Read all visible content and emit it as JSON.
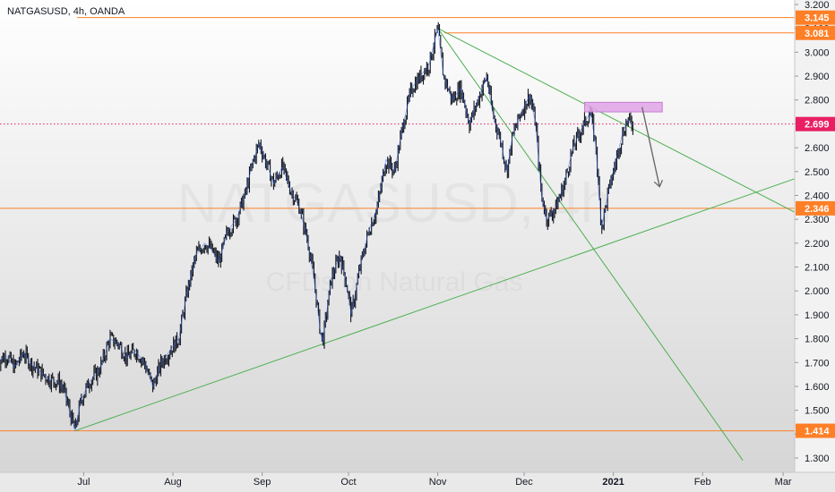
{
  "chart_data": {
    "type": "line",
    "title": "NATGASUSD, 4h, OANDA",
    "watermark": {
      "symbol": "NATGASUSD, 4h",
      "description": "CFDs on Natural Gas"
    },
    "x_axis": {
      "range": [
        "2020-06-01",
        "2021-03-05"
      ],
      "ticks": [
        {
          "label": "Jul",
          "date": "2020-07-01",
          "bold": false
        },
        {
          "label": "Aug",
          "date": "2020-08-01",
          "bold": false
        },
        {
          "label": "Sep",
          "date": "2020-09-01",
          "bold": false
        },
        {
          "label": "Oct",
          "date": "2020-10-01",
          "bold": false
        },
        {
          "label": "Nov",
          "date": "2020-11-01",
          "bold": false
        },
        {
          "label": "Dec",
          "date": "2020-12-01",
          "bold": false
        },
        {
          "label": "2021",
          "date": "2021-01-01",
          "bold": true
        },
        {
          "label": "Feb",
          "date": "2021-02-01",
          "bold": false
        },
        {
          "label": "Mar",
          "date": "2021-03-01",
          "bold": false
        }
      ]
    },
    "y_axis": {
      "range": [
        1.27,
        3.2
      ],
      "ticks": [
        "1.300",
        "1.400",
        "1.500",
        "1.600",
        "1.700",
        "1.800",
        "1.900",
        "2.000",
        "2.100",
        "2.200",
        "2.300",
        "2.400",
        "2.500",
        "2.600",
        "2.700",
        "2.800",
        "2.900",
        "3.000",
        "3.100",
        "3.200"
      ]
    },
    "series": [
      {
        "color": "#131722",
        "wick_color": "#2962ff",
        "points": [
          [
            "2020-06-01",
            1.7
          ],
          [
            "2020-06-04",
            1.73
          ],
          [
            "2020-06-07",
            1.68
          ],
          [
            "2020-06-10",
            1.74
          ],
          [
            "2020-06-13",
            1.69
          ],
          [
            "2020-06-16",
            1.66
          ],
          [
            "2020-06-19",
            1.63
          ],
          [
            "2020-06-22",
            1.62
          ],
          [
            "2020-06-24",
            1.59
          ],
          [
            "2020-06-26",
            1.5
          ],
          [
            "2020-06-28",
            1.414
          ],
          [
            "2020-06-30",
            1.54
          ],
          [
            "2020-07-03",
            1.62
          ],
          [
            "2020-07-06",
            1.66
          ],
          [
            "2020-07-08",
            1.72
          ],
          [
            "2020-07-10",
            1.8
          ],
          [
            "2020-07-13",
            1.78
          ],
          [
            "2020-07-16",
            1.72
          ],
          [
            "2020-07-19",
            1.75
          ],
          [
            "2020-07-22",
            1.7
          ],
          [
            "2020-07-25",
            1.6
          ],
          [
            "2020-07-28",
            1.7
          ],
          [
            "2020-07-31",
            1.75
          ],
          [
            "2020-08-03",
            1.8
          ],
          [
            "2020-08-06",
            2.0
          ],
          [
            "2020-08-09",
            2.15
          ],
          [
            "2020-08-12",
            2.2
          ],
          [
            "2020-08-14",
            2.18
          ],
          [
            "2020-08-17",
            2.12
          ],
          [
            "2020-08-20",
            2.25
          ],
          [
            "2020-08-23",
            2.3
          ],
          [
            "2020-08-26",
            2.4
          ],
          [
            "2020-08-29",
            2.55
          ],
          [
            "2020-08-31",
            2.62
          ],
          [
            "2020-09-02",
            2.55
          ],
          [
            "2020-09-05",
            2.45
          ],
          [
            "2020-09-08",
            2.52
          ],
          [
            "2020-09-11",
            2.42
          ],
          [
            "2020-09-14",
            2.35
          ],
          [
            "2020-09-17",
            2.2
          ],
          [
            "2020-09-19",
            2.05
          ],
          [
            "2020-09-21",
            1.85
          ],
          [
            "2020-09-22",
            1.785
          ],
          [
            "2020-09-25",
            2.05
          ],
          [
            "2020-09-28",
            2.15
          ],
          [
            "2020-09-30",
            2.05
          ],
          [
            "2020-10-02",
            1.9
          ],
          [
            "2020-10-05",
            2.1
          ],
          [
            "2020-10-08",
            2.25
          ],
          [
            "2020-10-11",
            2.35
          ],
          [
            "2020-10-14",
            2.55
          ],
          [
            "2020-10-17",
            2.5
          ],
          [
            "2020-10-20",
            2.7
          ],
          [
            "2020-10-23",
            2.85
          ],
          [
            "2020-10-26",
            2.9
          ],
          [
            "2020-10-29",
            2.95
          ],
          [
            "2020-11-01",
            3.1
          ],
          [
            "2020-11-03",
            2.9
          ],
          [
            "2020-11-06",
            2.8
          ],
          [
            "2020-11-09",
            2.85
          ],
          [
            "2020-11-12",
            2.7
          ],
          [
            "2020-11-15",
            2.8
          ],
          [
            "2020-11-18",
            2.9
          ],
          [
            "2020-11-20",
            2.75
          ],
          [
            "2020-11-23",
            2.62
          ],
          [
            "2020-11-25",
            2.5
          ],
          [
            "2020-11-27",
            2.65
          ],
          [
            "2020-11-30",
            2.75
          ],
          [
            "2020-12-03",
            2.82
          ],
          [
            "2020-12-05",
            2.7
          ],
          [
            "2020-12-07",
            2.4
          ],
          [
            "2020-12-09",
            2.3
          ],
          [
            "2020-12-12",
            2.35
          ],
          [
            "2020-12-15",
            2.45
          ],
          [
            "2020-12-18",
            2.6
          ],
          [
            "2020-12-21",
            2.68
          ],
          [
            "2020-12-24",
            2.75
          ],
          [
            "2020-12-26",
            2.6
          ],
          [
            "2020-12-27",
            2.4
          ],
          [
            "2020-12-28",
            2.27
          ],
          [
            "2020-12-30",
            2.4
          ],
          [
            "2021-01-02",
            2.55
          ],
          [
            "2021-01-04",
            2.65
          ],
          [
            "2021-01-06",
            2.72
          ],
          [
            "2021-01-07",
            2.7
          ],
          [
            "2021-01-08",
            2.699
          ]
        ]
      }
    ],
    "horizontal_levels": [
      {
        "value": 3.145,
        "label": "3.145",
        "color": "#ff7f27",
        "style": "solid"
      },
      {
        "value": 3.081,
        "label": "3.081",
        "color": "#ff7f27",
        "style": "solid"
      },
      {
        "value": 2.346,
        "label": "2.346",
        "color": "#ff7f27",
        "style": "solid"
      },
      {
        "value": 1.414,
        "label": "1.414",
        "color": "#ff7f27",
        "style": "solid"
      },
      {
        "value": 2.699,
        "label": "2.699",
        "color": "#e91e63",
        "style": "dotted"
      }
    ],
    "trendlines": [
      {
        "from": [
          "2020-06-28",
          1.414
        ],
        "to": [
          "2021-03-05",
          2.47
        ],
        "color": "#4caf50"
      },
      {
        "from": [
          "2020-11-01",
          3.1
        ],
        "to": [
          "2021-03-05",
          2.33
        ],
        "color": "#4caf50"
      },
      {
        "from": [
          "2020-11-01",
          3.1
        ],
        "to": [
          "2021-02-15",
          1.29
        ],
        "color": "#4caf50"
      }
    ],
    "annotations": [
      {
        "type": "rectangle",
        "from": [
          "2020-12-22",
          2.79
        ],
        "to": [
          "2021-01-18",
          2.75
        ],
        "color": "#e1a3e8"
      },
      {
        "type": "arrow",
        "from": [
          "2021-01-11",
          2.77
        ],
        "to": [
          "2021-01-17",
          2.44
        ],
        "color": "#6b6b6b"
      }
    ],
    "grid": false,
    "legend": "none"
  }
}
